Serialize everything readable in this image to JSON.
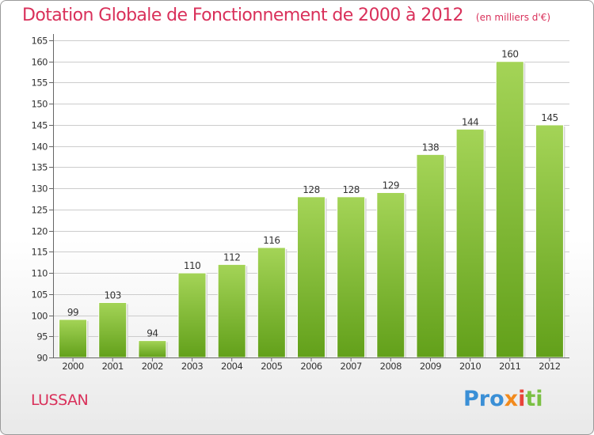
{
  "chart_data": {
    "type": "bar",
    "title": "Dotation Globale de Fonctionnement de 2000 à 2012",
    "subtitle": "(en milliers d'€)",
    "categories": [
      "2000",
      "2001",
      "2002",
      "2003",
      "2004",
      "2005",
      "2006",
      "2007",
      "2008",
      "2009",
      "2010",
      "2011",
      "2012"
    ],
    "values": [
      99,
      103,
      94,
      110,
      112,
      116,
      128,
      128,
      129,
      138,
      144,
      160,
      145
    ],
    "ylim": [
      90,
      165
    ],
    "yticks": [
      90,
      95,
      100,
      105,
      110,
      115,
      120,
      125,
      130,
      135,
      140,
      145,
      150,
      155,
      160,
      165
    ],
    "grid": true,
    "bar_color_top": "#a4d457",
    "bar_color_bottom": "#62a01a"
  },
  "commune": "LUSSAN",
  "logo": {
    "p1": "Pro",
    "p2": "x",
    "p3": "i",
    "p4": "ti"
  },
  "colors": {
    "title": "#d9305a",
    "grid": "#cccccc"
  }
}
